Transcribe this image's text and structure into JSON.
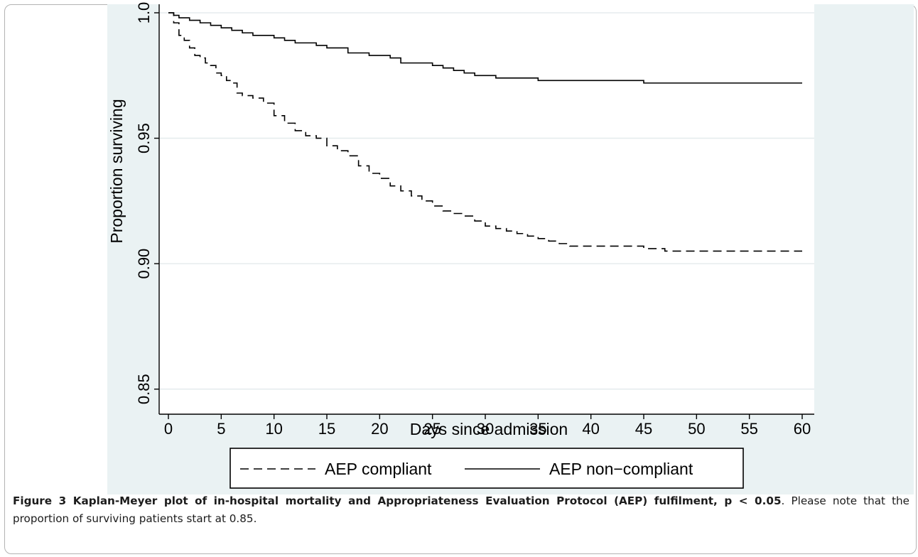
{
  "chart_data": {
    "type": "line",
    "title": "",
    "xlabel": "Days since admission",
    "ylabel": "Proportion surviving",
    "xlim": [
      0,
      60
    ],
    "ylim": [
      0.84,
      1.0
    ],
    "x_ticks": [
      "0",
      "5",
      "10",
      "15",
      "20",
      "25",
      "30",
      "35",
      "40",
      "45",
      "50",
      "55",
      "60"
    ],
    "y_ticks": [
      "0.85",
      "0.90",
      "0.95",
      "1.0"
    ],
    "grid": "horizontal",
    "legend_position": "bottom",
    "series": [
      {
        "name": "AEP compliant",
        "style": "dashed",
        "x": [
          0,
          0.5,
          1,
          1.5,
          2,
          2.5,
          3,
          3.5,
          4,
          4.5,
          5,
          5.5,
          6,
          6.5,
          7,
          8,
          9,
          10,
          11,
          12,
          13,
          14,
          15,
          16,
          17,
          18,
          19,
          20,
          21,
          22,
          23,
          24,
          25,
          26,
          27,
          28,
          29,
          30,
          31,
          32,
          33,
          34,
          35,
          36,
          37,
          38,
          39,
          40,
          42,
          45,
          47,
          50,
          55,
          60
        ],
        "values": [
          1.0,
          0.996,
          0.991,
          0.989,
          0.986,
          0.983,
          0.982,
          0.98,
          0.979,
          0.976,
          0.975,
          0.973,
          0.972,
          0.968,
          0.967,
          0.966,
          0.964,
          0.959,
          0.956,
          0.953,
          0.951,
          0.95,
          0.947,
          0.945,
          0.943,
          0.939,
          0.936,
          0.934,
          0.931,
          0.929,
          0.927,
          0.925,
          0.923,
          0.921,
          0.92,
          0.919,
          0.917,
          0.915,
          0.914,
          0.913,
          0.912,
          0.911,
          0.91,
          0.909,
          0.908,
          0.907,
          0.907,
          0.907,
          0.907,
          0.906,
          0.905,
          0.905,
          0.905,
          0.905
        ]
      },
      {
        "name": "AEP non−compliant",
        "style": "solid",
        "x": [
          0,
          0.5,
          1,
          2,
          3,
          4,
          5,
          6,
          6.5,
          7,
          8,
          10,
          11,
          12,
          13,
          14,
          15,
          17,
          19,
          21,
          22,
          23,
          25,
          26,
          27,
          28,
          29,
          31,
          35,
          40,
          45,
          47,
          50,
          55,
          60
        ],
        "values": [
          1.0,
          0.999,
          0.998,
          0.997,
          0.996,
          0.995,
          0.994,
          0.993,
          0.993,
          0.992,
          0.991,
          0.99,
          0.989,
          0.988,
          0.988,
          0.987,
          0.986,
          0.984,
          0.983,
          0.982,
          0.98,
          0.98,
          0.979,
          0.978,
          0.977,
          0.976,
          0.975,
          0.974,
          0.973,
          0.973,
          0.972,
          0.972,
          0.972,
          0.972,
          0.972
        ]
      }
    ]
  },
  "caption": {
    "label": "Figure 3 Kaplan-Meyer plot of in-hospital mortality and Appropriateness Evaluation Protocol (AEP) fulfilment, p < 0.05",
    "text": ". Please note that the proportion of surviving patients start at 0.85."
  }
}
